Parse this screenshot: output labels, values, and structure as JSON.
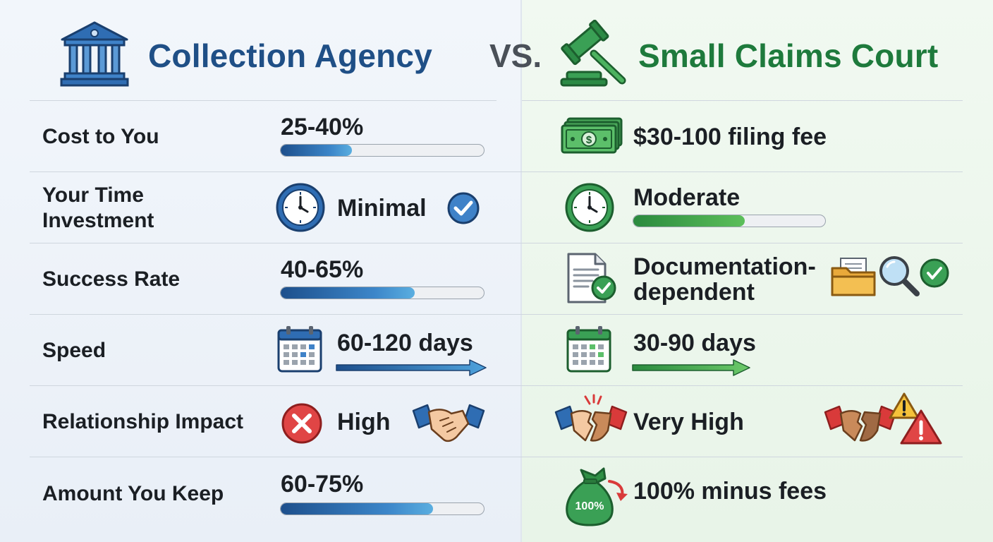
{
  "header": {
    "left_title": "Collection Agency",
    "vs_label": "VS.",
    "right_title": "Small Claims Court",
    "left_icon": "bank-building-icon",
    "right_icon": "gavel-icon"
  },
  "rows": [
    {
      "label": "Cost to You",
      "left": {
        "value": "25-40%",
        "level": 0.35
      },
      "right": {
        "value": "$30-100 filing fee",
        "icon": "money-stack-icon"
      }
    },
    {
      "label": "Your Time Investment",
      "label_line1": "Your Time",
      "label_line2": "Investment",
      "left": {
        "value": "Minimal",
        "icon": "clock-icon",
        "badge": "check-circle-icon"
      },
      "right": {
        "value": "Moderate",
        "icon": "clock-icon",
        "level": 0.58
      }
    },
    {
      "label": "Success Rate",
      "left": {
        "value": "40-65%",
        "level": 0.66
      },
      "right": {
        "value_line1": "Documentation-",
        "value_line2": "dependent",
        "icons": [
          "document-check-icon",
          "folder-icon",
          "magnifier-icon",
          "check-circle-icon"
        ]
      }
    },
    {
      "label": "Speed",
      "left": {
        "value": "60-120 days",
        "icon": "calendar-icon"
      },
      "right": {
        "value": "30-90 days",
        "icon": "calendar-icon"
      }
    },
    {
      "label": "Relationship Impact",
      "left": {
        "value": "High",
        "icons": [
          "x-circle-icon",
          "handshake-icon"
        ]
      },
      "right": {
        "value": "Very High",
        "icons": [
          "broken-handshake-icon",
          "warning-icon"
        ]
      }
    },
    {
      "label": "Amount You Keep",
      "left": {
        "value": "60-75%",
        "level": 0.75
      },
      "right": {
        "value": "100% minus fees",
        "icon": "money-bag-icon",
        "bag_text": "100%"
      }
    }
  ],
  "colors": {
    "agency_blue": "#1f4f86",
    "court_green": "#1e7a3c",
    "alert_red": "#d93a3a"
  }
}
